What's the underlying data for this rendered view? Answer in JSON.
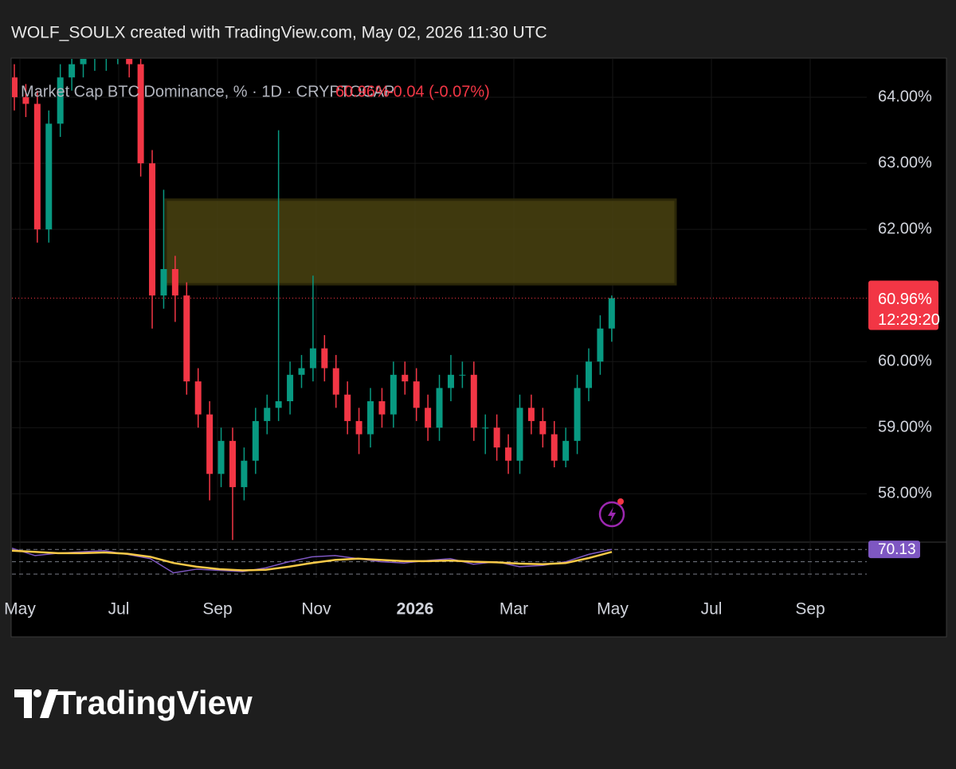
{
  "header": "WOLF_SOULX created with TradingView.com, May 02, 2026 11:30 UTC",
  "chart_data": {
    "type": "candlestick",
    "legend_title": "Market Cap BTC Dominance, % · 1D · CRYPTOCAP",
    "change_label": "-0.04 (-0.07%)",
    "up_color": "#089981",
    "down_color": "#f23645",
    "open": [
      64.3,
      64.0,
      63.9,
      62.0,
      63.6,
      64.3,
      64.5,
      64.6,
      64.6,
      64.7,
      64.7,
      64.5,
      63.0,
      61.0,
      61.4,
      61.0,
      59.7,
      59.2,
      58.3,
      58.8,
      58.1,
      58.5,
      59.1,
      59.3,
      59.4,
      59.8,
      59.9,
      60.2,
      59.9,
      59.5,
      59.1,
      58.9,
      59.4,
      59.2,
      59.8,
      59.7,
      59.3,
      59.0,
      59.6,
      59.8,
      59.8,
      59.0,
      59.0,
      58.7,
      58.5,
      59.3,
      59.1,
      58.9,
      58.5,
      58.8,
      59.6,
      60.0,
      60.5
    ],
    "high": [
      64.5,
      64.2,
      64.1,
      63.8,
      64.5,
      64.7,
      64.8,
      64.8,
      64.9,
      64.9,
      64.9,
      64.7,
      63.2,
      62.6,
      61.6,
      61.2,
      59.9,
      59.4,
      59.0,
      59.0,
      58.7,
      59.3,
      59.5,
      63.5,
      60.0,
      60.1,
      61.3,
      60.4,
      60.1,
      59.7,
      59.3,
      59.6,
      59.6,
      60.0,
      60.0,
      59.9,
      59.5,
      59.8,
      60.1,
      60.0,
      60.0,
      59.2,
      59.2,
      58.9,
      59.5,
      59.5,
      59.3,
      59.1,
      59.0,
      59.8,
      60.2,
      60.7,
      61.0
    ],
    "low": [
      63.8,
      63.7,
      61.8,
      61.8,
      63.4,
      64.1,
      64.3,
      64.4,
      64.4,
      64.5,
      64.3,
      62.8,
      60.5,
      60.8,
      60.6,
      59.5,
      59.0,
      57.9,
      58.1,
      57.3,
      57.9,
      58.3,
      58.9,
      59.1,
      59.2,
      59.6,
      59.7,
      59.7,
      59.3,
      58.9,
      58.6,
      58.7,
      59.0,
      59.0,
      59.5,
      59.1,
      58.8,
      58.8,
      59.4,
      59.6,
      58.8,
      58.6,
      58.5,
      58.3,
      58.3,
      58.9,
      58.7,
      58.4,
      58.4,
      58.6,
      59.4,
      59.8,
      60.3
    ],
    "close": [
      64.0,
      63.9,
      62.0,
      63.6,
      64.3,
      64.5,
      64.6,
      64.6,
      64.7,
      64.7,
      64.5,
      63.0,
      61.0,
      61.4,
      61.0,
      59.7,
      59.2,
      58.3,
      58.8,
      58.1,
      58.5,
      59.1,
      59.3,
      59.4,
      59.8,
      59.9,
      60.2,
      59.9,
      59.5,
      59.1,
      58.9,
      59.4,
      59.2,
      59.8,
      59.7,
      59.3,
      59.0,
      59.6,
      59.8,
      59.8,
      59.0,
      59.0,
      58.7,
      58.5,
      59.3,
      59.1,
      58.9,
      58.5,
      58.8,
      59.6,
      60.0,
      60.5,
      60.96
    ],
    "ylim": [
      57.28,
      64.58
    ],
    "yticks": [
      {
        "value": 58,
        "label": "58.00%"
      },
      {
        "value": 59,
        "label": "59.00%"
      },
      {
        "value": 60,
        "label": "60.00%"
      },
      {
        "value": 62,
        "label": "62.00%"
      },
      {
        "value": 63,
        "label": "63.00%"
      },
      {
        "value": 64,
        "label": "64.00%"
      }
    ],
    "xtick_labels": [
      "May",
      "Jul",
      "Sep",
      "Nov",
      "2026",
      "Mar",
      "May",
      "Jul",
      "Sep"
    ],
    "zone": {
      "top": 62.45,
      "bottom": 61.17,
      "color": "#4a4310"
    },
    "last_price": {
      "value": 60.96,
      "label": "60.96%"
    },
    "countdown": "12:29:20",
    "rsi": {
      "values": [
        72,
        60,
        64,
        66,
        68,
        62,
        55,
        32,
        38,
        36,
        34,
        40,
        50,
        58,
        60,
        55,
        50,
        48,
        52,
        55,
        46,
        50,
        42,
        44,
        50,
        62,
        70.13
      ],
      "color": "#7e57c2",
      "ma": [
        68,
        66,
        64,
        64,
        65,
        63,
        58,
        48,
        42,
        38,
        36,
        37,
        42,
        48,
        53,
        55,
        53,
        51,
        51,
        52,
        50,
        49,
        47,
        46,
        48,
        56,
        66
      ],
      "ma_color": "#f7c948",
      "ylim": [
        25,
        78
      ],
      "levels": [
        70,
        50,
        30
      ]
    }
  },
  "footer": {
    "logo": "TradingView"
  }
}
